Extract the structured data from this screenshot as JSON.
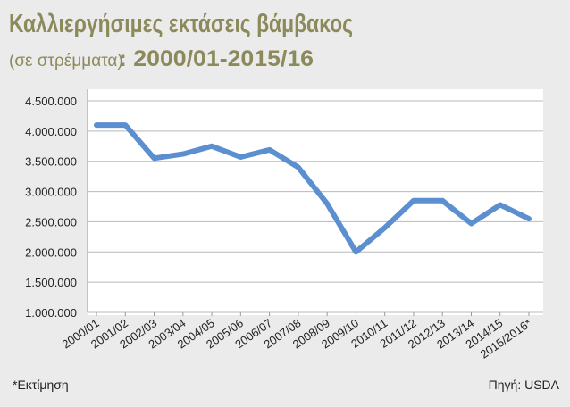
{
  "chart_data": {
    "type": "line",
    "title": "Καλλιεργήσιμες εκτάσεις βάμβακος",
    "subtitle": "(σε στρέμματα)",
    "subtitle_period": ": 2000/01-2015/16",
    "footnote": "*Εκτίμηση",
    "source": "Πηγή: USDA",
    "categories": [
      "2000/01",
      "2001/02",
      "2002/03",
      "2003/04",
      "2004/05",
      "2005/06",
      "2006/07",
      "2007/08",
      "2008/09",
      "2009/10",
      "2010/11",
      "2011/12",
      "2012/13",
      "2013/14",
      "2014/15",
      "2015/2016*"
    ],
    "series": [
      {
        "name": "Καλλιεργήσιμες εκτάσεις",
        "color": "#5b8fd0",
        "values": [
          4100000,
          4100000,
          3550000,
          3620000,
          3750000,
          3570000,
          3690000,
          3400000,
          2800000,
          2000000,
          2400000,
          2850000,
          2850000,
          2470000,
          2780000,
          2550000
        ]
      }
    ],
    "ylim": [
      1000000,
      4500000
    ],
    "yticks": [
      {
        "value": 1000000,
        "label": "1.000.000"
      },
      {
        "value": 1500000,
        "label": "1.500.000"
      },
      {
        "value": 2000000,
        "label": "2.000.000"
      },
      {
        "value": 2500000,
        "label": "2.500.000"
      },
      {
        "value": 3000000,
        "label": "3.000.000"
      },
      {
        "value": 3500000,
        "label": "3.500.000"
      },
      {
        "value": 4000000,
        "label": "4.000.000"
      },
      {
        "value": 4500000,
        "label": "4.500.000"
      }
    ],
    "grid": true
  }
}
